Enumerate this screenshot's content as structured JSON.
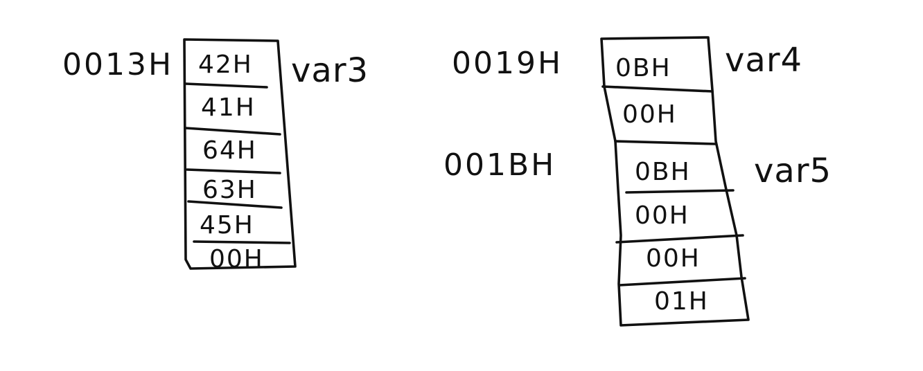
{
  "colors": {
    "background": "#ffffff",
    "ink": "#111111"
  },
  "block1": {
    "address": "0013H",
    "variable": "var3",
    "cells": [
      "42H",
      "41H",
      "64H",
      "63H",
      "45H",
      "00H"
    ]
  },
  "block2": {
    "address": "0019H",
    "variable": "var4",
    "cells": [
      "0BH",
      "00H"
    ]
  },
  "block3": {
    "address": "001BH",
    "variable": "var5",
    "cells": [
      "0BH",
      "00H",
      "00H",
      "01H"
    ]
  }
}
